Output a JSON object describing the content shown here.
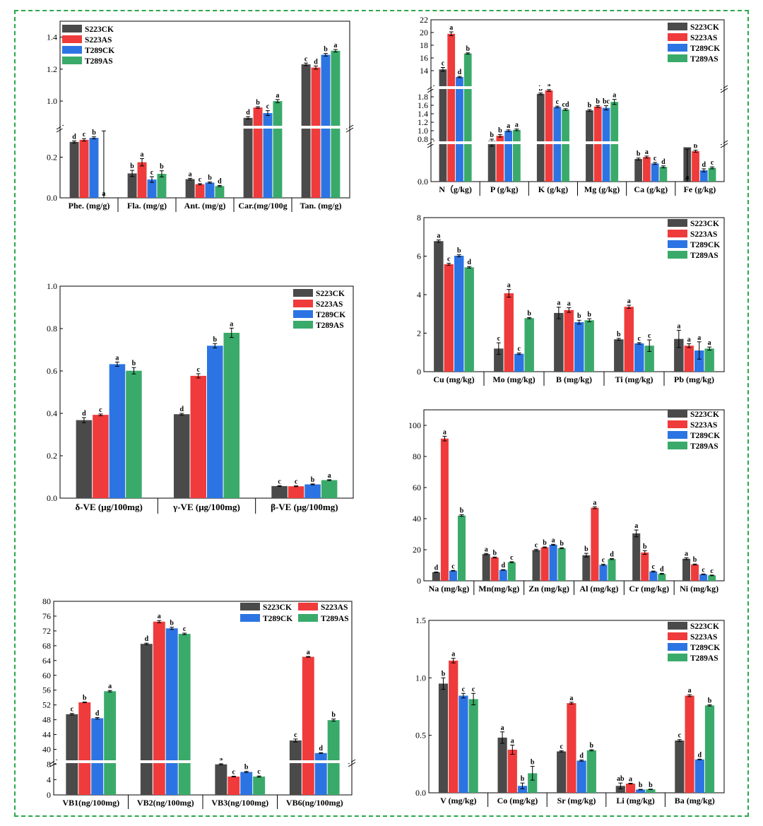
{
  "colors": {
    "S223CK": "#4a4a4a",
    "S223AS": "#ef3b3b",
    "T289CK": "#2c74e3",
    "T289AS": "#3aaa6a",
    "frame": "#2aa84a"
  },
  "series_names": [
    "S223CK",
    "S223AS",
    "T289CK",
    "T289AS"
  ],
  "chart_data": [
    {
      "id": "p1",
      "type": "bar",
      "broken_axis": true,
      "categories": [
        "Phe. (mg/g)",
        "Fla. (mg/g)",
        "Ant. (mg/g)",
        "Car.(mg/100g",
        "Tan. (mg/g)"
      ],
      "series": [
        {
          "name": "S223CK",
          "values": [
            0.275,
            0.12,
            0.092,
            0.895,
            1.23
          ]
        },
        {
          "name": "S223AS",
          "values": [
            0.285,
            0.175,
            0.067,
            0.96,
            1.21
          ]
        },
        {
          "name": "T289CK",
          "values": [
            0.295,
            0.09,
            0.075,
            0.925,
            1.29
          ]
        },
        {
          "name": "T289AS",
          "values": [
            0.335,
            0.118,
            0.058,
            1.0,
            1.315
          ]
        }
      ],
      "errors": [
        [
          0.005,
          0.015,
          0.004,
          0.008,
          0.008
        ],
        [
          0.006,
          0.018,
          0.003,
          0.005,
          0.01
        ],
        [
          0.005,
          0.014,
          0.003,
          0.015,
          0.008
        ],
        [
          0.006,
          0.015,
          0.003,
          0.01,
          0.008
        ]
      ],
      "letters": [
        [
          "d",
          "b",
          "a",
          "d",
          "c"
        ],
        [
          "c",
          "a",
          "c",
          "b",
          "d"
        ],
        [
          "b",
          "c",
          "b",
          "c",
          "b"
        ],
        [
          "a",
          "b",
          "d",
          "a",
          "a"
        ]
      ],
      "yticks": [
        "0.0",
        "0.2",
        "1.0",
        "1.2",
        "1.4"
      ],
      "ylim": [
        0,
        1.5
      ]
    },
    {
      "id": "p2",
      "type": "bar",
      "broken_axis": true,
      "categories": [
        "N（g/kg)",
        "P (g/kg)",
        "K (g/kg)",
        "Mg (g/kg)",
        "Ca (g/kg)",
        "Fe (g/kg)"
      ],
      "series": [
        {
          "name": "S223CK",
          "values": [
            14.2,
            0.76,
            1.87,
            1.48,
            0.46,
            0.7
          ]
        },
        {
          "name": "S223AS",
          "values": [
            19.8,
            0.88,
            1.95,
            1.57,
            0.5,
            0.62
          ]
        },
        {
          "name": "T289CK",
          "values": [
            13.0,
            1.0,
            1.56,
            1.54,
            0.37,
            0.23
          ]
        },
        {
          "name": "T289AS",
          "values": [
            16.7,
            1.02,
            1.5,
            1.68,
            0.3,
            0.28
          ]
        }
      ],
      "errors": [
        [
          0.3,
          0.04,
          0.02,
          0.02,
          0.02,
          0.04
        ],
        [
          0.3,
          0.03,
          0.02,
          0.02,
          0.02,
          0.02
        ],
        [
          0.1,
          0.02,
          0.02,
          0.05,
          0.02,
          0.03
        ],
        [
          0.1,
          0.02,
          0.02,
          0.06,
          0.02,
          0.02
        ]
      ],
      "letters": [
        [
          "c",
          "b",
          "b",
          "b",
          "b",
          "a"
        ],
        [
          "a",
          "b",
          "a",
          "b",
          "a",
          "b"
        ],
        [
          "d",
          "a",
          "c",
          "bc",
          "c",
          "d"
        ],
        [
          "b",
          "a",
          "cd",
          "a",
          "d",
          "c"
        ]
      ],
      "yticks": [
        "0.0",
        "0.8",
        "1.0",
        "1.2",
        "1.4",
        "1.6",
        "1.8",
        "14",
        "16",
        "18",
        "20",
        "22"
      ]
    },
    {
      "id": "p3",
      "type": "bar",
      "categories": [
        "Cu (mg/kg)",
        "Mo (mg/kg)",
        "B (mg/kg)",
        "Ti (mg/kg)",
        "Pb (mg/kg)"
      ],
      "series": [
        {
          "name": "S223CK",
          "values": [
            6.78,
            1.2,
            3.05,
            1.68,
            1.7
          ]
        },
        {
          "name": "S223AS",
          "values": [
            5.58,
            4.07,
            3.2,
            3.37,
            1.35
          ]
        },
        {
          "name": "T289CK",
          "values": [
            6.02,
            0.93,
            2.57,
            1.47,
            1.1
          ]
        },
        {
          "name": "T289AS",
          "values": [
            5.42,
            2.78,
            2.67,
            1.35,
            1.2
          ]
        }
      ],
      "errors": [
        [
          0.06,
          0.3,
          0.3,
          0.05,
          0.45
        ],
        [
          0.05,
          0.2,
          0.12,
          0.08,
          0.1
        ],
        [
          0.05,
          0.04,
          0.1,
          0.04,
          0.45
        ],
        [
          0.04,
          0.03,
          0.08,
          0.3,
          0.08
        ]
      ],
      "letters": [
        [
          "a",
          "c",
          "a",
          "b",
          "a"
        ],
        [
          "c",
          "a",
          "a",
          "a",
          "a"
        ],
        [
          "b",
          "c",
          "b",
          "c",
          "a"
        ],
        [
          "d",
          "b",
          "b",
          "c",
          "a"
        ]
      ],
      "yticks": [
        "0",
        "2",
        "4",
        "6",
        "8"
      ],
      "ylim": [
        0,
        8
      ]
    },
    {
      "id": "p4",
      "type": "bar",
      "categories": [
        "δ-VE (μg/100mg)",
        "γ-VE (μg/100mg)",
        "β-VE (μg/100mg)"
      ],
      "series": [
        {
          "name": "S223CK",
          "values": [
            0.368,
            0.396,
            0.057
          ]
        },
        {
          "name": "S223AS",
          "values": [
            0.393,
            0.577,
            0.056
          ]
        },
        {
          "name": "T289CK",
          "values": [
            0.632,
            0.719,
            0.065
          ]
        },
        {
          "name": "T289AS",
          "values": [
            0.601,
            0.78,
            0.085
          ]
        }
      ],
      "errors": [
        [
          0.012,
          0.004,
          0.002
        ],
        [
          0.004,
          0.01,
          0.002
        ],
        [
          0.01,
          0.01,
          0.002
        ],
        [
          0.015,
          0.022,
          0.002
        ]
      ],
      "letters": [
        [
          "d",
          "d",
          "c"
        ],
        [
          "c",
          "c",
          "c"
        ],
        [
          "a",
          "b",
          "b"
        ],
        [
          "b",
          "a",
          "a"
        ]
      ],
      "yticks": [
        "0.0",
        "0.2",
        "0.4",
        "0.6",
        "0.8",
        "1.0"
      ],
      "ylim": [
        0,
        1.0
      ]
    },
    {
      "id": "p5",
      "type": "bar",
      "categories": [
        "Na (mg/kg)",
        "Mn(mg/kg)",
        "Zn (mg/kg)",
        "Al (mg/kg)",
        "Cr (mg/kg)",
        "Ni (mg/kg)"
      ],
      "series": [
        {
          "name": "S223CK",
          "values": [
            5.5,
            17.2,
            19.8,
            16.5,
            30.5,
            14.2
          ]
        },
        {
          "name": "S223AS",
          "values": [
            91.5,
            15.0,
            21.5,
            47.0,
            18.2,
            10.5
          ]
        },
        {
          "name": "T289CK",
          "values": [
            6.5,
            7.0,
            23.2,
            10.3,
            6.0,
            4.2
          ]
        },
        {
          "name": "T289AS",
          "values": [
            42.0,
            12.0,
            21.0,
            14.0,
            4.5,
            3.5
          ]
        }
      ],
      "errors": [
        [
          0.2,
          0.4,
          0.5,
          1.2,
          2.2,
          0.6
        ],
        [
          1.5,
          0.3,
          0.3,
          0.6,
          1.2,
          0.3
        ],
        [
          0.2,
          0.2,
          0.3,
          0.4,
          0.3,
          0.2
        ],
        [
          0.5,
          0.3,
          0.3,
          0.3,
          0.3,
          0.2
        ]
      ],
      "letters": [
        [
          "d",
          "a",
          "c",
          "b",
          "a",
          "a"
        ],
        [
          "a",
          "b",
          "b",
          "a",
          "b",
          "b"
        ],
        [
          "c",
          "d",
          "a",
          "c",
          "c",
          "c"
        ],
        [
          "b",
          "c",
          "b",
          "d",
          "d",
          "c"
        ]
      ],
      "yticks": [
        "0",
        "20",
        "40",
        "60",
        "80",
        "100"
      ],
      "ylim": [
        0,
        110
      ]
    },
    {
      "id": "p6",
      "type": "bar",
      "broken_axis": true,
      "categories": [
        "VB1(ng/100mg)",
        "VB2(ng/100mg)",
        "VB3(ng/100mg)",
        "VB6(ng/100mg)"
      ],
      "series": [
        {
          "name": "S223CK",
          "values": [
            49.5,
            68.5,
            8.0,
            42.4
          ]
        },
        {
          "name": "S223AS",
          "values": [
            52.7,
            74.5,
            4.8,
            65.0
          ]
        },
        {
          "name": "T289CK",
          "values": [
            48.4,
            72.7,
            6.0,
            39.0
          ]
        },
        {
          "name": "T289AS",
          "values": [
            55.7,
            71.2,
            4.8,
            47.9
          ]
        }
      ],
      "errors": [
        [
          0.2,
          0.2,
          0.15,
          0.4
        ],
        [
          0.1,
          0.3,
          0.1,
          0.1
        ],
        [
          0.2,
          0.3,
          0.15,
          0.1
        ],
        [
          0.2,
          0.2,
          0.15,
          0.3
        ]
      ],
      "letters": [
        [
          "c",
          "d",
          "a",
          "c"
        ],
        [
          "b",
          "a",
          "c",
          "a"
        ],
        [
          "d",
          "b",
          "b",
          "d"
        ],
        [
          "a",
          "c",
          "c",
          "b"
        ]
      ],
      "yticks": [
        "0",
        "4",
        "8",
        "40",
        "44",
        "48",
        "52",
        "56",
        "60",
        "64",
        "68",
        "72",
        "76",
        "80"
      ]
    },
    {
      "id": "p7",
      "type": "bar",
      "categories": [
        "V (mg/kg)",
        "Co (mg/kg)",
        "Sr (mg/kg)",
        "Li (mg/kg)",
        "Ba (mg/kg)"
      ],
      "series": [
        {
          "name": "S223CK",
          "values": [
            0.95,
            0.48,
            0.36,
            0.06,
            0.455
          ]
        },
        {
          "name": "S223AS",
          "values": [
            1.15,
            0.375,
            0.78,
            0.08,
            0.845
          ]
        },
        {
          "name": "T289CK",
          "values": [
            0.845,
            0.06,
            0.28,
            0.028,
            0.29
          ]
        },
        {
          "name": "T289AS",
          "values": [
            0.815,
            0.17,
            0.37,
            0.03,
            0.76
          ]
        }
      ],
      "errors": [
        [
          0.05,
          0.05,
          0.005,
          0.025,
          0.008
        ],
        [
          0.02,
          0.04,
          0.008,
          0.003,
          0.008
        ],
        [
          0.02,
          0.025,
          0.005,
          0.002,
          0.003
        ],
        [
          0.05,
          0.06,
          0.005,
          0.002,
          0.005
        ]
      ],
      "letters": [
        [
          "b",
          "a",
          "c",
          "ab",
          "c"
        ],
        [
          "a",
          "a",
          "a",
          "a",
          "a"
        ],
        [
          "c",
          "b",
          "d",
          "b",
          "d"
        ],
        [
          "c",
          "b",
          "b",
          "b",
          "b"
        ]
      ],
      "yticks": [
        "0.0",
        "0.5",
        "1.0",
        "1.5"
      ],
      "ylim": [
        0,
        1.5
      ]
    }
  ]
}
